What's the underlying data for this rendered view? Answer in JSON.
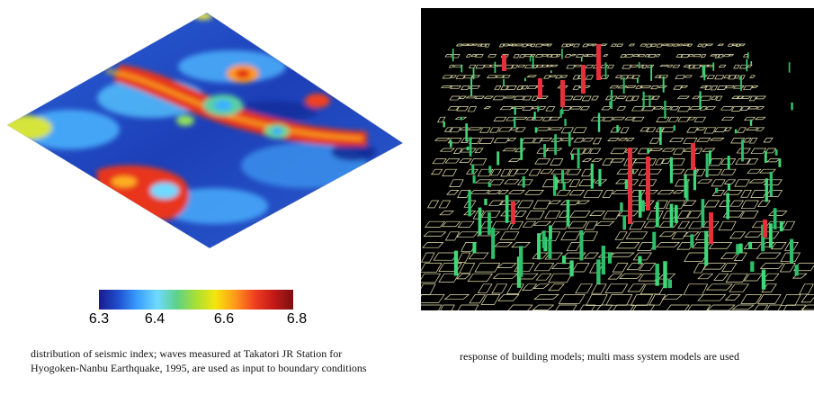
{
  "colorbar": {
    "ticks": [
      "6.3",
      "6.4",
      "6.6",
      "6.8"
    ],
    "colors": [
      "#1a1a8c",
      "#1f4fd0",
      "#3aa0ff",
      "#6fd9ff",
      "#5cd18a",
      "#a7e034",
      "#f5e50c",
      "#ff9a1a",
      "#f04020",
      "#c41818",
      "#7a1010"
    ]
  },
  "captions": {
    "left": "distribution of seismic index; waves measured at Takatori JR Station for Hyogoken-Nanbu Earthquake, 1995, are used as input to boundary conditions",
    "right": "response of building models; multi mass system models are used"
  }
}
